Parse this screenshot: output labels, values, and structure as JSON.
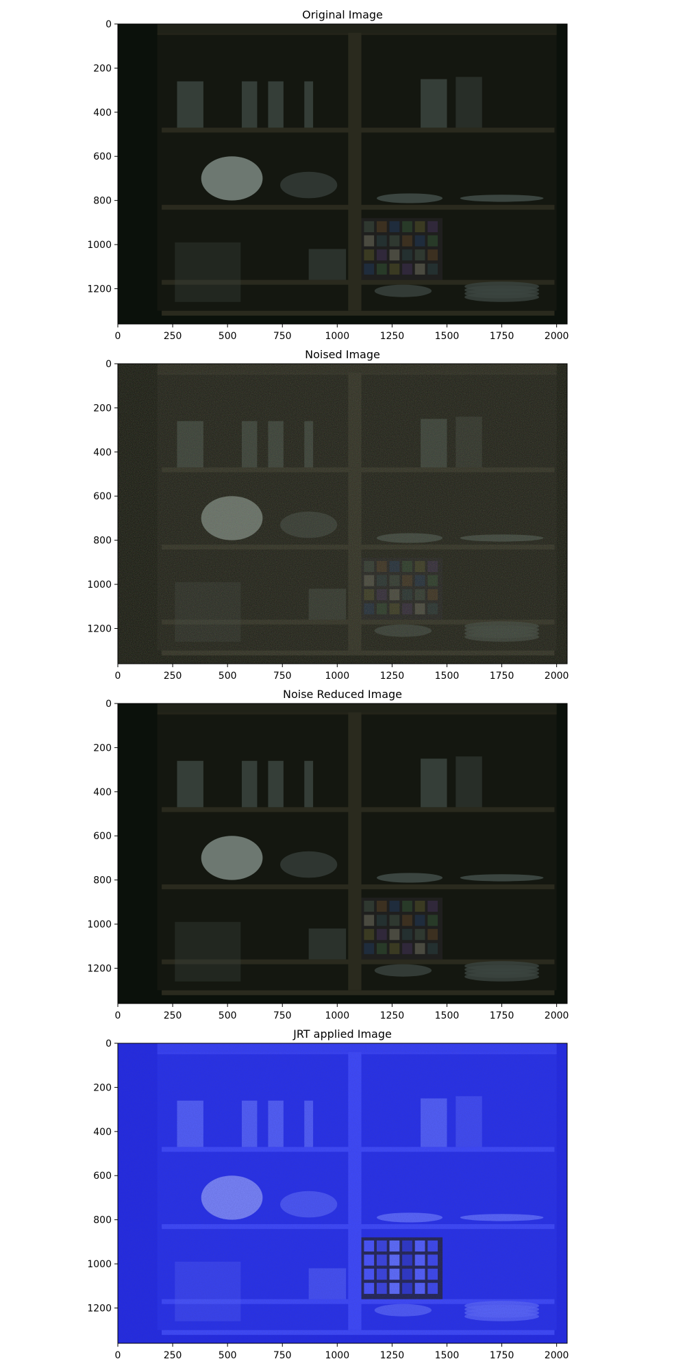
{
  "figure": {
    "panels": [
      {
        "title": "Original Image",
        "tone": "dark-green"
      },
      {
        "title": "Noised Image",
        "tone": "dark-noisy"
      },
      {
        "title": "Noise Reduced Image",
        "tone": "dark-green"
      },
      {
        "title": "JRT applied Image",
        "tone": "blue"
      }
    ]
  },
  "chart_data": {
    "type": "image-grid",
    "panels": [
      {
        "title": "Original Image"
      },
      {
        "title": "Noised Image"
      },
      {
        "title": "Noise Reduced Image"
      },
      {
        "title": "JRT applied Image"
      }
    ],
    "x_axis": {
      "ticks": [
        0,
        250,
        500,
        750,
        1000,
        1250,
        1500,
        1750,
        2000
      ],
      "range": [
        0,
        2048
      ]
    },
    "y_axis": {
      "ticks": [
        0,
        200,
        400,
        600,
        800,
        1000,
        1200
      ],
      "range": [
        0,
        1360
      ],
      "inverted": true
    },
    "grid": false
  },
  "colors": {
    "dark-green": "#0c120c",
    "dark-noisy": "#16180f",
    "blue": "#1f27e8"
  }
}
